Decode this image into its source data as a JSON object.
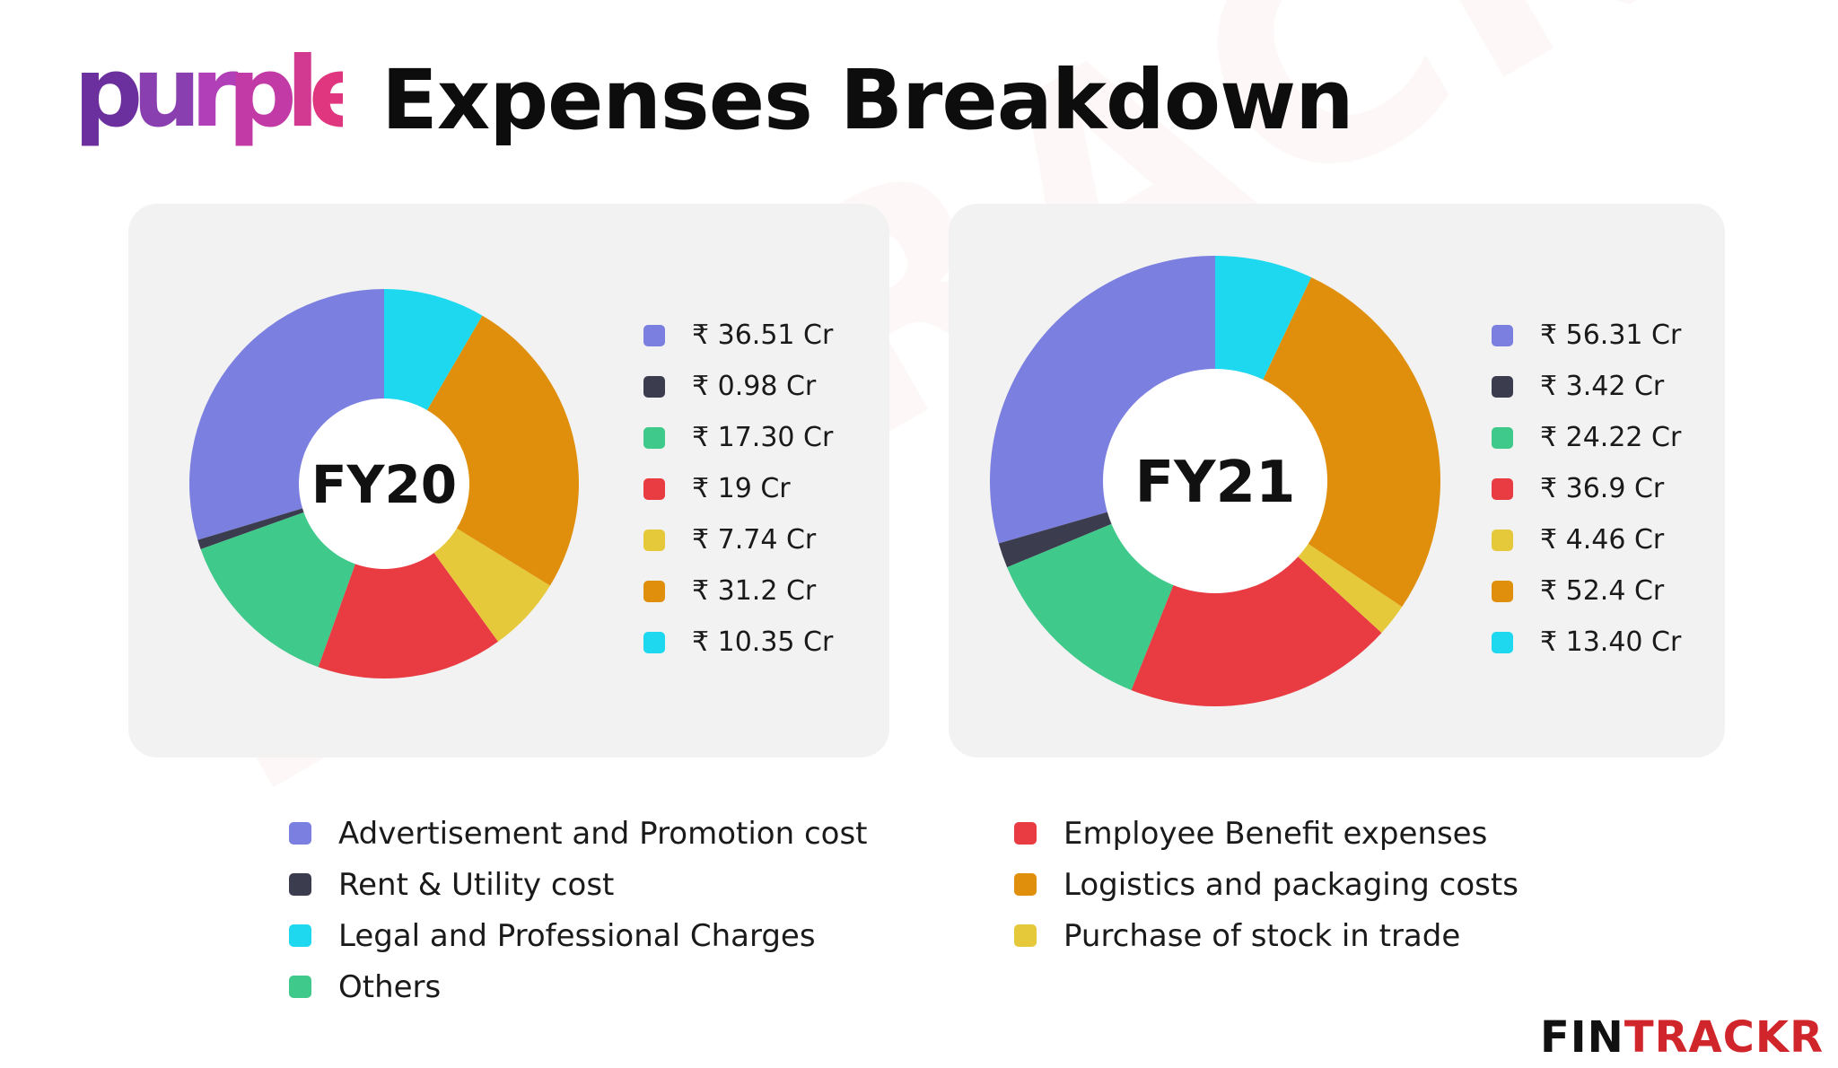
{
  "logo": {
    "text": "purple"
  },
  "title": "Expenses Breakdown",
  "brand": {
    "part1": "FIN",
    "part2": "TRACKR"
  },
  "watermark": "ENTRACKR",
  "categories": [
    {
      "key": "advertisement",
      "name": "Advertisement and Promotion cost",
      "color": "#7b7fe0"
    },
    {
      "key": "rent",
      "name": "Rent & Utility cost",
      "color": "#3b3d4f"
    },
    {
      "key": "others",
      "name": "Others",
      "color": "#3fc98a"
    },
    {
      "key": "employee",
      "name": "Employee Benefit expenses",
      "color": "#e83c42"
    },
    {
      "key": "purchase",
      "name": "Purchase of stock in trade",
      "color": "#e6c93a"
    },
    {
      "key": "logistics",
      "name": "Logistics and packaging costs",
      "color": "#e08f0c"
    },
    {
      "key": "legal",
      "name": "Legal and Professional Charges",
      "color": "#1ed8ef"
    }
  ],
  "legend_left": [
    "Advertisement and Promotion cost",
    "Rent & Utility cost",
    "Legal and Professional Charges",
    "Others"
  ],
  "legend_right": [
    "Employee Benefit expenses",
    "Logistics and packaging costs",
    "Purchase of stock in trade"
  ],
  "chart_data": [
    {
      "type": "pie",
      "donut": true,
      "center_label": "FY20",
      "unit": "₹ Cr",
      "slices": [
        {
          "category": "Advertisement and Promotion cost",
          "value": 36.51,
          "label": "₹ 36.51 Cr"
        },
        {
          "category": "Rent & Utility cost",
          "value": 0.98,
          "label": "₹ 0.98 Cr"
        },
        {
          "category": "Others",
          "value": 17.3,
          "label": "₹ 17.30 Cr"
        },
        {
          "category": "Employee Benefit expenses",
          "value": 19,
          "label": "₹ 19 Cr"
        },
        {
          "category": "Purchase of stock in trade",
          "value": 7.74,
          "label": "₹ 7.74 Cr"
        },
        {
          "category": "Logistics and packaging costs",
          "value": 31.2,
          "label": "₹ 31.2 Cr"
        },
        {
          "category": "Legal and Professional Charges",
          "value": 10.35,
          "label": "₹ 10.35 Cr"
        }
      ]
    },
    {
      "type": "pie",
      "donut": true,
      "center_label": "FY21",
      "unit": "₹ Cr",
      "slices": [
        {
          "category": "Advertisement and Promotion cost",
          "value": 56.31,
          "label": "₹ 56.31 Cr"
        },
        {
          "category": "Rent & Utility cost",
          "value": 3.42,
          "label": "₹ 3.42 Cr"
        },
        {
          "category": "Others",
          "value": 24.22,
          "label": "₹ 24.22 Cr"
        },
        {
          "category": "Employee Benefit expenses",
          "value": 36.9,
          "label": "₹ 36.9 Cr"
        },
        {
          "category": "Purchase of stock in trade",
          "value": 4.46,
          "label": "₹ 4.46 Cr"
        },
        {
          "category": "Logistics and packaging costs",
          "value": 52.4,
          "label": "₹ 52.4 Cr"
        },
        {
          "category": "Legal and Professional Charges",
          "value": 13.4,
          "label": "₹ 13.40 Cr"
        }
      ]
    }
  ]
}
